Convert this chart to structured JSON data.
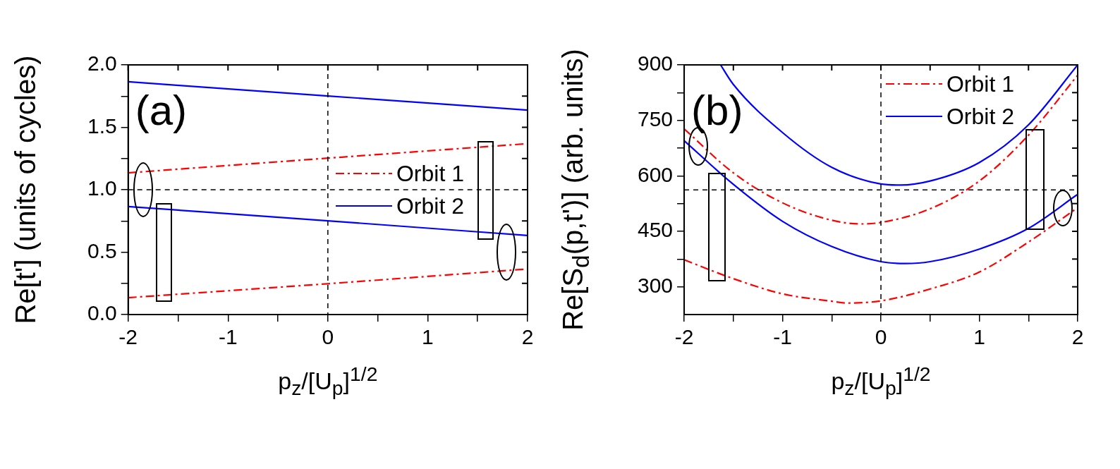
{
  "chart_data": [
    {
      "type": "line",
      "xlabel": "p$_{z}$/[U$_{p}$]$^{1/2}$",
      "ylabel": "Re[t'] (units of cycles)",
      "annotations": [
        "(a)"
      ],
      "legend": "right",
      "grid": false,
      "xlim": [
        -2,
        2
      ],
      "ylim": [
        0,
        2
      ],
      "xticks": [
        -2,
        {
          "value": -1.5,
          "label": null
        },
        -1,
        {
          "value": -0.5,
          "label": null
        },
        0,
        {
          "value": 0.5,
          "label": null
        },
        1,
        {
          "value": 1.5,
          "label": null
        },
        2
      ],
      "yticks": [
        {
          "value": 0,
          "label": "0.0"
        },
        {
          "value": 0.25,
          "label": null
        },
        0.5,
        {
          "value": 0.75,
          "label": null
        },
        {
          "value": 1,
          "label": "1.0"
        },
        {
          "value": 1.25,
          "label": null
        },
        1.5,
        {
          "value": 1.75,
          "label": null
        },
        {
          "value": 2,
          "label": "2.0"
        }
      ],
      "ref_lines": [
        {
          "axis": "x",
          "value": 0,
          "color": "#000000",
          "line_style": "dashed"
        },
        {
          "axis": "y",
          "value": 1,
          "color": "#000000",
          "line_style": "dashed"
        }
      ],
      "series": [
        {
          "name": "Orbit 1",
          "color": "#ff0000",
          "line_style": "dashed",
          "x": [
            -2,
            0,
            2
          ],
          "values": [
            1.135,
            1.253,
            1.369
          ]
        },
        {
          "color": "#ff0000",
          "line_style": "dashed",
          "x": [
            -2,
            0,
            2
          ],
          "values": [
            0.135,
            0.247,
            0.365
          ]
        },
        {
          "name": "Orbit 2",
          "color": "#0000ff",
          "line_style": "solid",
          "x": [
            -2,
            0,
            2
          ],
          "values": [
            0.865,
            0.751,
            0.633
          ]
        },
        {
          "color": "#0000ff",
          "line_style": "solid",
          "x": [
            -2,
            0,
            2
          ],
          "values": [
            1.865,
            1.751,
            1.638
          ]
        }
      ]
    },
    {
      "type": "line",
      "xlabel": "p$_{z}$/[U$_{p}$]$^{1/2}$",
      "ylabel": "Re[S$_{d}$(p,t')] (arb. units)",
      "annotations": [
        "(b)"
      ],
      "legend": "top right",
      "grid": false,
      "xlim": [
        -2,
        2
      ],
      "ylim": [
        225,
        900
      ],
      "xticks": [
        -2,
        {
          "value": -1.5,
          "label": null
        },
        -1,
        {
          "value": -0.5,
          "label": null
        },
        0,
        {
          "value": 0.5,
          "label": null
        },
        1,
        {
          "value": 1.5,
          "label": null
        },
        2
      ],
      "yticks": [
        300,
        {
          "value": 375,
          "label": null
        },
        450,
        {
          "value": 525,
          "label": null
        },
        600,
        {
          "value": 675,
          "label": null
        },
        750,
        {
          "value": 825,
          "label": null
        },
        900
      ],
      "ref_lines": [
        {
          "axis": "x",
          "value": 0,
          "color": "#000000",
          "line_style": "dashed"
        },
        {
          "axis": "y",
          "value": 562,
          "color": "#000000",
          "line_style": "dashed"
        }
      ],
      "series": [
        {
          "name": "Orbit 1",
          "color": "#ff0000",
          "line_style": "dashed",
          "x": [
            -2,
            -1.5,
            -1,
            -0.5,
            -0.2,
            0,
            0.5,
            1,
            1.5,
            2
          ],
          "values": [
            727,
            608,
            527,
            480,
            470,
            474,
            511,
            586,
            710,
            872
          ]
        },
        {
          "color": "#ff0000",
          "line_style": "dashed",
          "x": [
            -2,
            -1.5,
            -1,
            -0.5,
            -0.35,
            0,
            0.5,
            1,
            1.5,
            2
          ],
          "values": [
            373,
            322,
            281,
            261,
            256,
            262,
            294,
            340,
            421,
            514
          ]
        },
        {
          "name": "Orbit 2",
          "color": "#0000ff",
          "line_style": "solid",
          "x": [
            -1.63,
            -1.5,
            -1,
            -0.5,
            0,
            0.2,
            0.5,
            1,
            1.5,
            2
          ],
          "values": [
            900,
            847,
            717,
            623,
            578,
            575,
            586,
            636,
            738,
            900
          ]
        },
        {
          "color": "#0000ff",
          "line_style": "solid",
          "x": [
            -2,
            -1.5,
            -1,
            -0.5,
            0,
            0.25,
            0.5,
            1,
            1.5,
            2
          ],
          "values": [
            695,
            577,
            477,
            409,
            368,
            363,
            368,
            402,
            458,
            550
          ]
        }
      ]
    }
  ]
}
